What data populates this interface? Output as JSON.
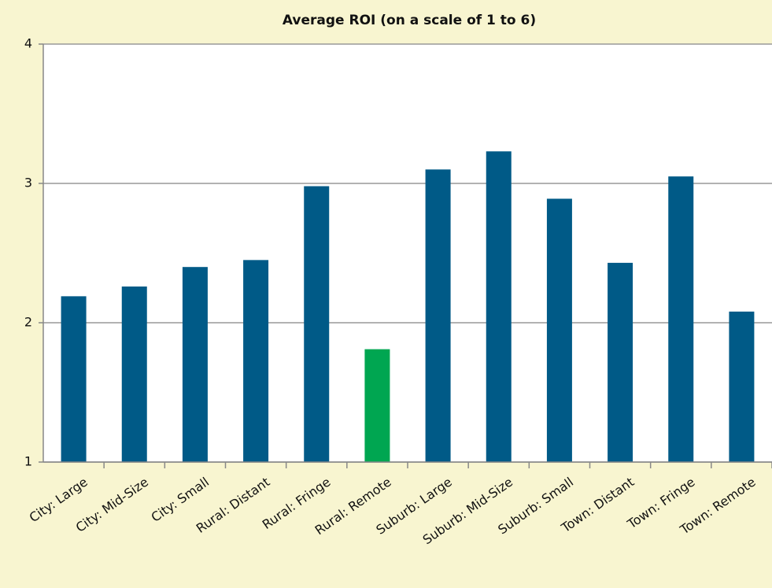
{
  "chart_data": {
    "type": "bar",
    "title": "Average ROI (on a scale of 1 to 6)",
    "categories": [
      "City: Large",
      "City: Mid-Size",
      "City: Small",
      "Rural: Distant",
      "Rural: Fringe",
      "Rural: Remote",
      "Suburb: Large",
      "Suburb: Mid-Size",
      "Suburb: Small",
      "Town: Distant",
      "Town: Fringe",
      "Town: Remote"
    ],
    "values": [
      2.19,
      2.26,
      2.4,
      2.45,
      2.98,
      1.81,
      3.1,
      3.23,
      2.89,
      2.43,
      3.05,
      2.08
    ],
    "colors": [
      "#005a87",
      "#005a87",
      "#005a87",
      "#005a87",
      "#005a87",
      "#00a651",
      "#005a87",
      "#005a87",
      "#005a87",
      "#005a87",
      "#005a87",
      "#005a87"
    ],
    "ylim": [
      1,
      4
    ],
    "yticks": [
      1,
      2,
      3,
      4
    ],
    "grid": true
  }
}
